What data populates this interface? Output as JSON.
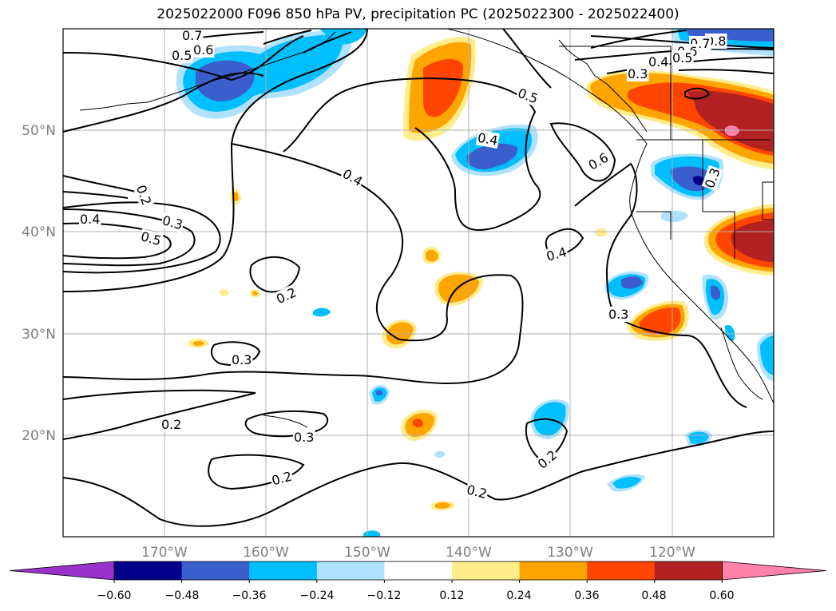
{
  "title": "2025022000 F096 850 hPa PV, precipitation PC (2025022300 - 2025022400)",
  "map": {
    "lon_labels": [
      "170°W",
      "160°W",
      "150°W",
      "140°W",
      "130°W",
      "120°W"
    ],
    "lat_labels": [
      "50°N",
      "40°N",
      "30°N",
      "20°N"
    ],
    "contour_labels": [
      "0.7",
      "0.6",
      "0.5",
      "0.2",
      "0.4",
      "0.3",
      "0.5",
      "0.2",
      "0.3",
      "0.2",
      "0.2",
      "0.3",
      "0.4",
      "0.5",
      "0.4",
      "0.6",
      "0.4",
      "0.3",
      "0.2",
      "0.2",
      "0.3",
      "0.8",
      "0.7",
      "0.6",
      "0.5",
      "0.4",
      "0.3",
      "0.3"
    ]
  },
  "colorbar": {
    "tick_labels": [
      "−0.60",
      "−0.48",
      "−0.36",
      "−0.24",
      "−0.12",
      "0.12",
      "0.24",
      "0.36",
      "0.48",
      "0.60"
    ],
    "colors": [
      "#9932cc",
      "#00008b",
      "#3a5fcd",
      "#00bfff",
      "#b0e2ff",
      "#ffffff",
      "#ffec8b",
      "#ffa500",
      "#ff4500",
      "#b22222",
      "#ff82ab"
    ]
  }
}
